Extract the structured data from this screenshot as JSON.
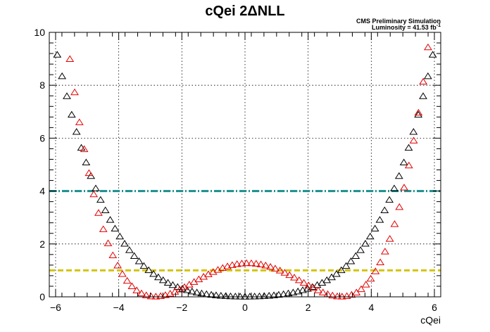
{
  "chart_data": {
    "type": "scatter",
    "title": "cQei 2ΔNLL",
    "xlabel": "cQei",
    "ylabel": "",
    "annotation": {
      "line1": "CMS Preliminary Simulation",
      "line2_prefix": "Luminosity = 41.53 fb",
      "line2_sup": "-1"
    },
    "xlim": [
      -6.2,
      6.2
    ],
    "ylim": [
      0,
      10
    ],
    "grid": true,
    "x_ticks": [
      -6,
      -4,
      -2,
      0,
      2,
      4,
      6
    ],
    "y_ticks": [
      0,
      2,
      4,
      6,
      8,
      10
    ],
    "reference_lines": [
      {
        "y": 4,
        "color": "#1a8f8f"
      },
      {
        "y": 1,
        "color": "#d4c40c"
      }
    ],
    "series": [
      {
        "color": "#000000",
        "marker": "open-triangle",
        "model": {
          "kind": "quartic",
          "a": 0.0058,
          "b": 0.0534,
          "x0": 0
        },
        "x_range": [
          -6.1,
          6.1
        ],
        "n_points": 81
      },
      {
        "color": "#e00000",
        "marker": "open-triangle",
        "model": {
          "kind": "double-well",
          "a": 0.0167,
          "x1": -2.85,
          "x2": 3.05,
          "xmid": 0.1
        },
        "x_range": [
          -5.85,
          6.1
        ],
        "n_points": 80
      }
    ]
  }
}
